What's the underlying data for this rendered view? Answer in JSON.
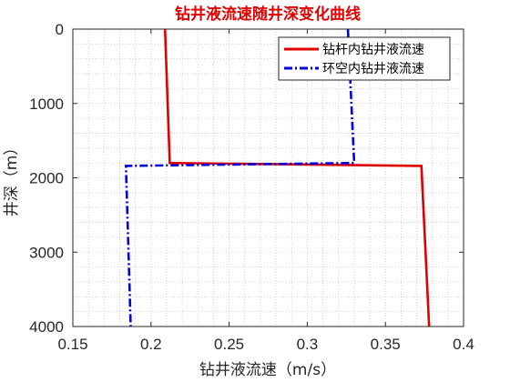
{
  "chart_data": {
    "type": "line",
    "title": "钻井液流速随井深变化曲线",
    "xlabel": "钻井液流速（m/s）",
    "ylabel": "井深（m）",
    "xlim": [
      0.15,
      0.4
    ],
    "ylim": [
      0,
      4000
    ],
    "y_reversed": true,
    "x_ticks": [
      0.15,
      0.2,
      0.25,
      0.3,
      0.35,
      0.4
    ],
    "x_tick_labels": [
      "0.15",
      "0.2",
      "0.25",
      "0.3",
      "0.35",
      "0.4"
    ],
    "y_ticks": [
      0,
      1000,
      2000,
      3000,
      4000
    ],
    "y_tick_labels": [
      "0",
      "1000",
      "2000",
      "3000",
      "4000"
    ],
    "grid": "minor dotted",
    "legend_position": "top-right",
    "series": [
      {
        "name": "钻杆内钻井液流速",
        "color": "#e00000",
        "style": "solid",
        "points": [
          [
            0.209,
            0
          ],
          [
            0.212,
            1800
          ],
          [
            0.373,
            1840
          ],
          [
            0.378,
            4000
          ]
        ]
      },
      {
        "name": "环空内钻井液流速",
        "color": "#0000e0",
        "style": "dashdot",
        "points": [
          [
            0.326,
            0
          ],
          [
            0.33,
            1800
          ],
          [
            0.184,
            1840
          ],
          [
            0.187,
            4000
          ]
        ]
      }
    ]
  }
}
